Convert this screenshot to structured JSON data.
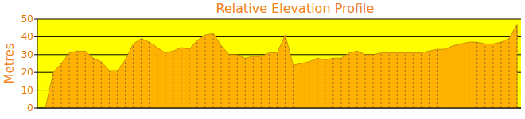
{
  "chart_data": {
    "type": "area",
    "title": "Relative Elevation Profile",
    "y_label": "Metres",
    "categories": [
      null,
      null,
      null,
      null,
      null,
      null,
      null,
      null,
      null,
      null,
      null,
      null,
      null,
      null,
      null,
      null,
      null,
      null,
      null,
      null,
      null,
      null,
      null,
      null,
      null,
      null,
      null,
      null,
      null,
      null,
      null,
      null,
      null,
      null,
      null,
      null,
      null,
      null,
      null,
      null,
      null,
      null,
      null,
      null,
      null,
      null,
      null,
      null,
      null,
      null,
      null,
      null,
      null,
      null,
      null,
      null,
      null,
      null,
      null,
      null
    ],
    "values": [
      0,
      20,
      25,
      31,
      32,
      32,
      28,
      26,
      21,
      21,
      27,
      36,
      39,
      37,
      34,
      31,
      32,
      34,
      33,
      38,
      41,
      42,
      35,
      30,
      30,
      28,
      29,
      29,
      31,
      31,
      41,
      24,
      25,
      26,
      28,
      27,
      28,
      28,
      31,
      32,
      30,
      30,
      31,
      31,
      31,
      31,
      31,
      31,
      32,
      33,
      33,
      35,
      36,
      37,
      37,
      36,
      36,
      37,
      39,
      47
    ],
    "color": "#ffb300",
    "ylim": [
      0,
      50
    ],
    "yticks": [
      0,
      10,
      20,
      30,
      40,
      50
    ],
    "grid": true,
    "tick_labels": "y"
  }
}
